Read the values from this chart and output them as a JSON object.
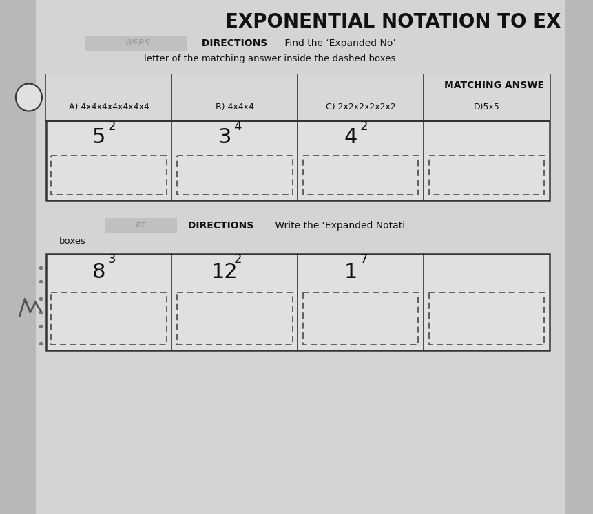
{
  "title": "EXPONENTIAL NOTATION TO EX",
  "bg_color": "#b8b8b8",
  "paper_color": "#d4d4d4",
  "cell_color": "#e0e0e0",
  "white": "#ffffff",
  "directions1_gray": "WERS",
  "directions1_bold": " DIRECTIONS",
  "directions1_rest": " Find the ‘Expanded No’",
  "directions1_sub": "letter of the matching answer inside the dashed boxes",
  "matching_label": "MATCHING ANSWE",
  "col_answers": [
    "A) 4x4x4x4x4x4x4",
    "B) 4x4x4",
    "C) 2x2x2x2x2x2",
    "D)5x5"
  ],
  "row1_bases": [
    "5",
    "3",
    "4",
    ""
  ],
  "row1_exps": [
    "2",
    "4",
    "2",
    ""
  ],
  "directions2_gray": "ET",
  "directions2_bold": " DIRECTIONS",
  "directions2_rest": " Write the ‘Expanded Notati",
  "directions2_sub": "boxes",
  "row2_bases": [
    "8",
    "12",
    "1",
    ""
  ],
  "row2_exps": [
    "3",
    "2",
    "7",
    ""
  ],
  "border_color": "#333333",
  "dashed_color": "#555555",
  "text_color": "#111111",
  "gray_text": "#888888",
  "title_fontsize": 20,
  "body_fontsize": 10,
  "cell_fontsize": 22,
  "exp_fontsize": 13,
  "ans_fontsize": 9
}
